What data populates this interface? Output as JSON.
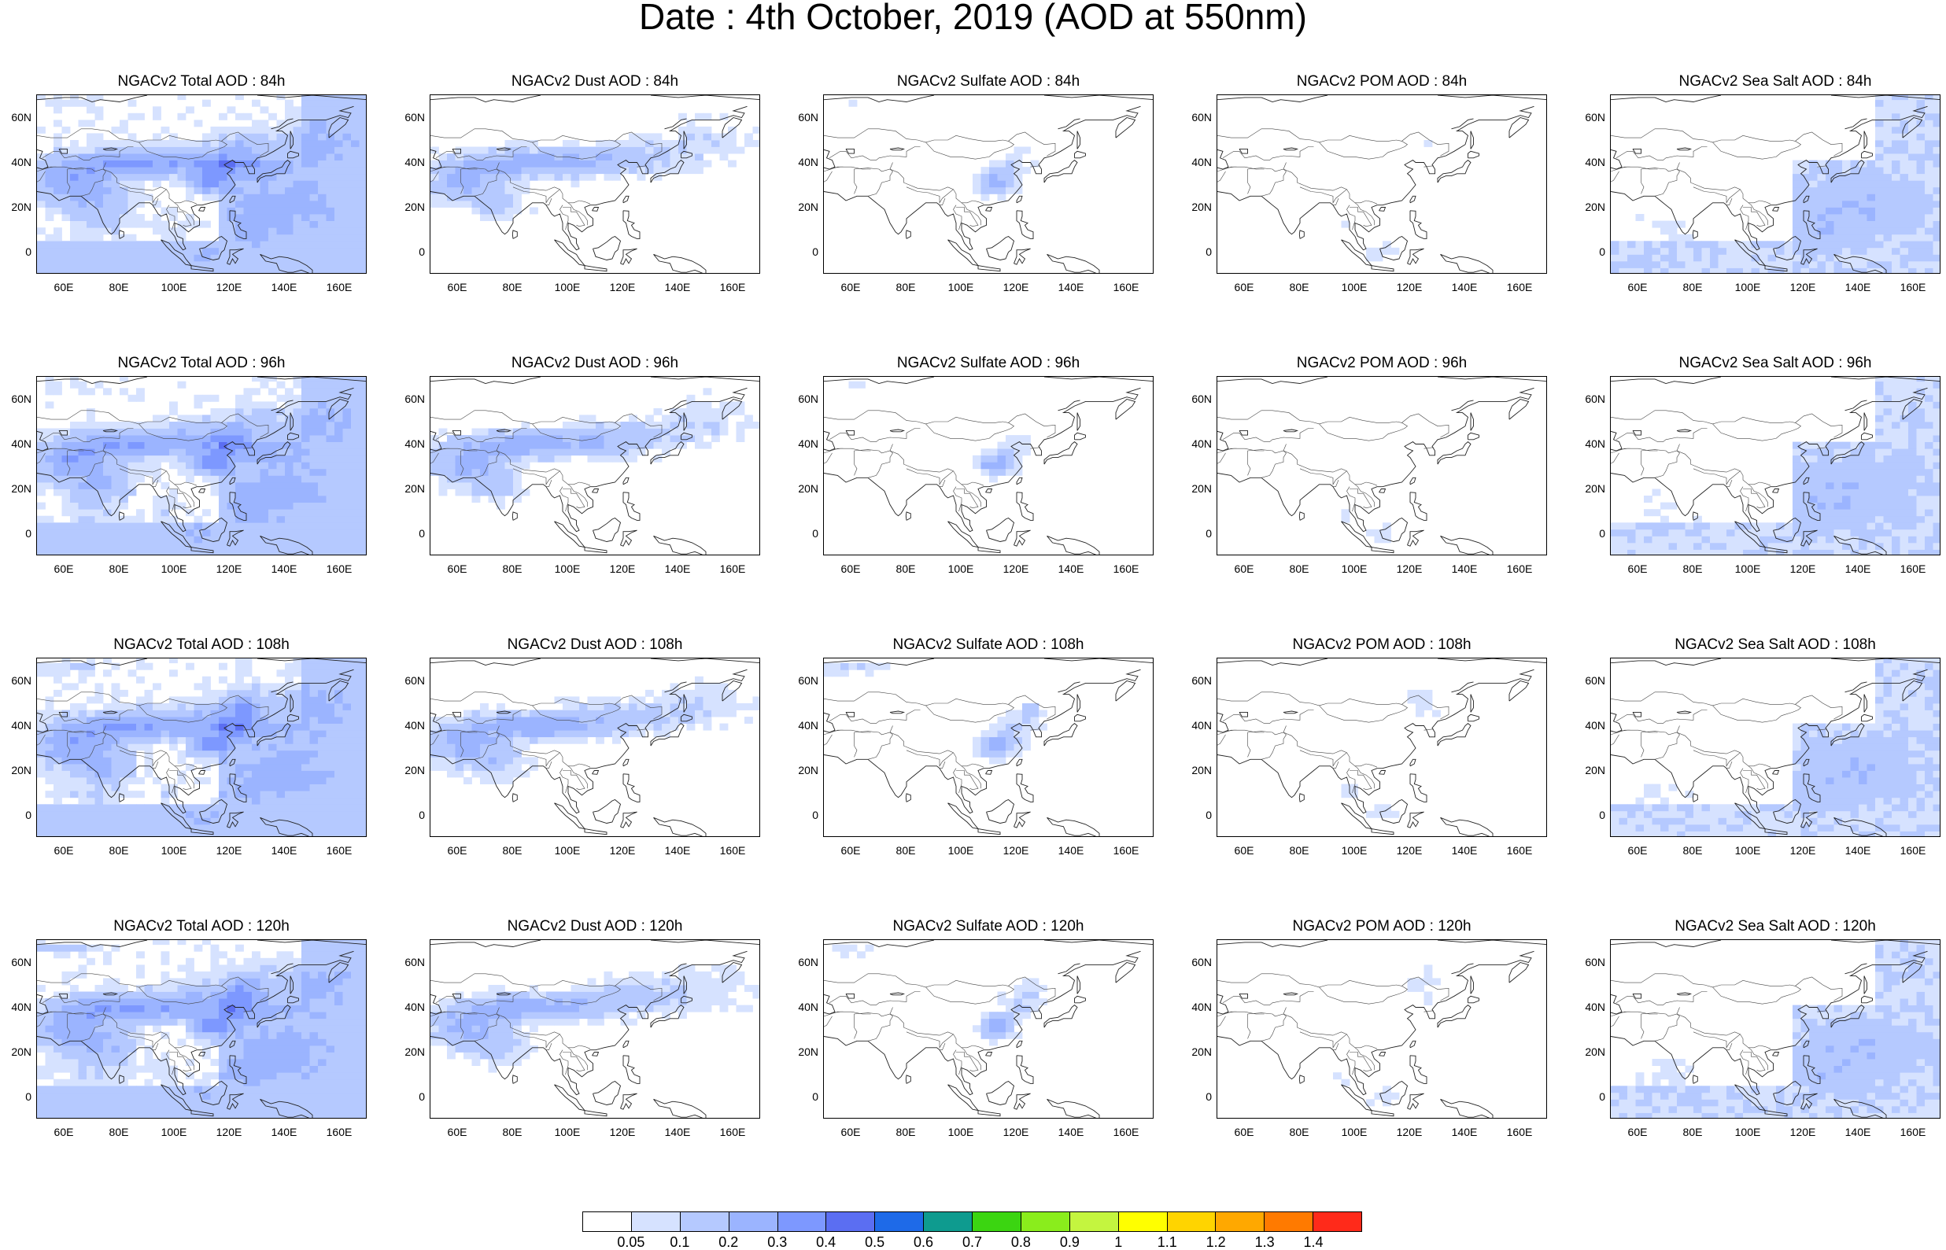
{
  "title": "Date : 4th October, 2019 (AOD at 550nm)",
  "panels": [
    {
      "title": "NGACv2 Total AOD : 84h",
      "field": "total",
      "hour": "84h"
    },
    {
      "title": "NGACv2 Dust AOD : 84h",
      "field": "dust",
      "hour": "84h"
    },
    {
      "title": "NGACv2 Sulfate AOD : 84h",
      "field": "sulfate",
      "hour": "84h"
    },
    {
      "title": "NGACv2 POM AOD : 84h",
      "field": "pom",
      "hour": "84h"
    },
    {
      "title": "NGACv2 Sea Salt AOD : 84h",
      "field": "seasalt",
      "hour": "84h"
    },
    {
      "title": "NGACv2 Total AOD : 96h",
      "field": "total",
      "hour": "96h"
    },
    {
      "title": "NGACv2 Dust AOD : 96h",
      "field": "dust",
      "hour": "96h"
    },
    {
      "title": "NGACv2 Sulfate AOD : 96h",
      "field": "sulfate",
      "hour": "96h"
    },
    {
      "title": "NGACv2 POM AOD : 96h",
      "field": "pom",
      "hour": "96h"
    },
    {
      "title": "NGACv2 Sea Salt AOD : 96h",
      "field": "seasalt",
      "hour": "96h"
    },
    {
      "title": "NGACv2 Total AOD : 108h",
      "field": "total",
      "hour": "108h"
    },
    {
      "title": "NGACv2 Dust AOD : 108h",
      "field": "dust",
      "hour": "108h"
    },
    {
      "title": "NGACv2 Sulfate AOD : 108h",
      "field": "sulfate",
      "hour": "108h"
    },
    {
      "title": "NGACv2 POM AOD : 108h",
      "field": "pom",
      "hour": "108h"
    },
    {
      "title": "NGACv2 Sea Salt AOD : 108h",
      "field": "seasalt",
      "hour": "108h"
    },
    {
      "title": "NGACv2 Total AOD : 120h",
      "field": "total",
      "hour": "120h"
    },
    {
      "title": "NGACv2 Dust AOD : 120h",
      "field": "dust",
      "hour": "120h"
    },
    {
      "title": "NGACv2 Sulfate AOD : 120h",
      "field": "sulfate",
      "hour": "120h"
    },
    {
      "title": "NGACv2 POM AOD : 120h",
      "field": "pom",
      "hour": "120h"
    },
    {
      "title": "NGACv2 Sea Salt  AOD : 120h",
      "field": "seasalt",
      "hour": "120h"
    }
  ],
  "map_extent": {
    "lon_min": 50,
    "lon_max": 170,
    "lat_min": -10,
    "lat_max": 70
  },
  "lon_ticks": [
    60,
    80,
    100,
    120,
    140,
    160
  ],
  "lon_tick_labels": [
    "60E",
    "80E",
    "100E",
    "120E",
    "140E",
    "160E"
  ],
  "lat_ticks": [
    60,
    40,
    20,
    0
  ],
  "lat_tick_labels": [
    "60N",
    "40N",
    "20N",
    "0"
  ],
  "colorbar": {
    "labels": [
      "0.05",
      "0.1",
      "0.2",
      "0.3",
      "0.4",
      "0.5",
      "0.6",
      "0.7",
      "0.8",
      "0.9",
      "1",
      "1.1",
      "1.2",
      "1.3",
      "1.4"
    ],
    "colors": [
      "#ffffff",
      "#d6e2ff",
      "#b5c9ff",
      "#9bb4ff",
      "#7d98ff",
      "#5b6ef2",
      "#1e6ae8",
      "#0e9b8f",
      "#3bd511",
      "#8aed1c",
      "#c4f53f",
      "#ffff00",
      "#ffd400",
      "#ffa800",
      "#ff7a00",
      "#ff2a1a"
    ]
  }
}
